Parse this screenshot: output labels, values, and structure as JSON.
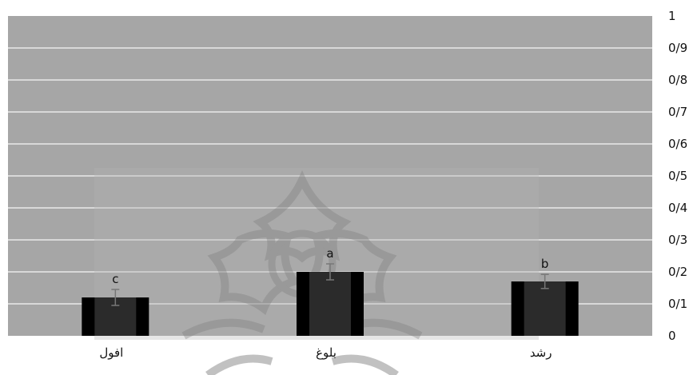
{
  "chart_data": {
    "type": "bar",
    "title": "",
    "xlabel": "",
    "ylabel": "",
    "categories": [
      "افول",
      "بلوغ",
      "رشد"
    ],
    "values": [
      0.12,
      0.2,
      0.17
    ],
    "errors": [
      0.025,
      0.025,
      0.022
    ],
    "data_labels": [
      "c",
      "a",
      "b"
    ],
    "ylim": [
      0,
      1
    ],
    "yticks": [
      "0",
      "0/1",
      "0/2",
      "0/3",
      "0/4",
      "0/5",
      "0/6",
      "0/7",
      "0/8",
      "0/9",
      "1"
    ],
    "y_axis_side": "right",
    "grid": true,
    "legend": "none",
    "colors": {
      "plot_background": "#a6a6a6",
      "gridline": "#e8e8e8",
      "bar_dark": "#000000",
      "bar_light": "#2b2b2b",
      "error_bar": "#777777",
      "watermark": "#8f8f8f"
    }
  }
}
